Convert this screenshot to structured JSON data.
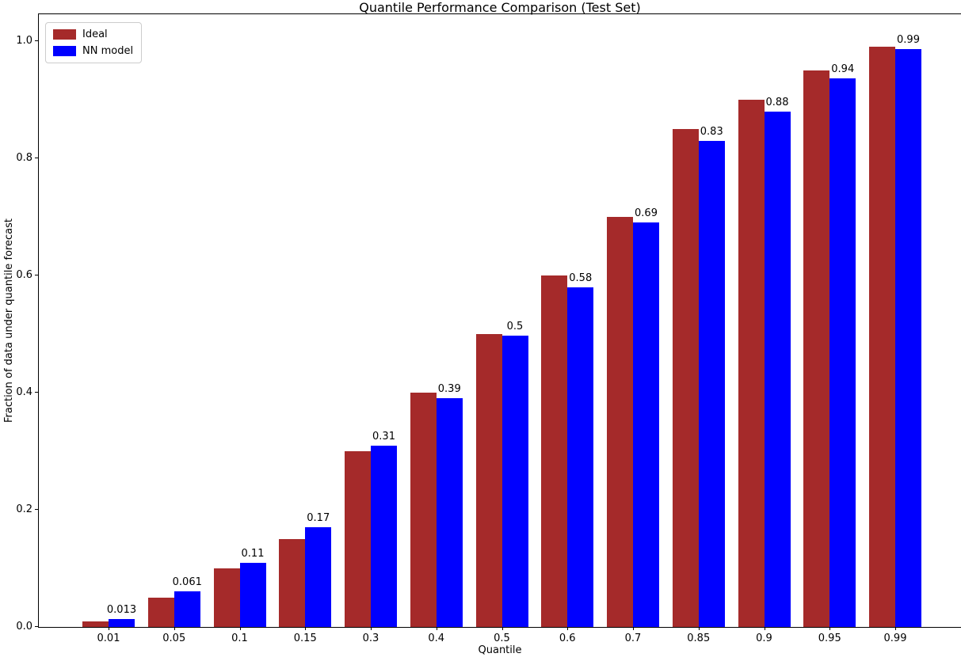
{
  "chart_data": {
    "type": "bar",
    "title": "Quantile Performance Comparison (Test Set)",
    "xlabel": "Quantile",
    "ylabel": "Fraction of data under quantile forecast",
    "categories": [
      "0.01",
      "0.05",
      "0.1",
      "0.15",
      "0.3",
      "0.4",
      "0.5",
      "0.6",
      "0.7",
      "0.85",
      "0.9",
      "0.95",
      "0.99"
    ],
    "series": [
      {
        "name": "Ideal",
        "color": "#A52A2A",
        "values": [
          0.01,
          0.05,
          0.1,
          0.15,
          0.3,
          0.4,
          0.5,
          0.6,
          0.7,
          0.85,
          0.9,
          0.95,
          0.99
        ]
      },
      {
        "name": "NN model",
        "color": "#0000FF",
        "values": [
          0.013,
          0.061,
          0.11,
          0.17,
          0.31,
          0.39,
          0.497,
          0.58,
          0.69,
          0.83,
          0.88,
          0.937,
          0.987
        ],
        "bar_labels": [
          "0.013",
          "0.061",
          "0.11",
          "0.17",
          "0.31",
          "0.39",
          "0.5",
          "0.58",
          "0.69",
          "0.83",
          "0.88",
          "0.94",
          "0.99"
        ]
      }
    ],
    "ylim": [
      0,
      1.046
    ],
    "yticks": {
      "values": [
        0,
        0.2,
        0.4,
        0.6,
        0.8,
        1.0
      ],
      "labels": [
        "0.0",
        "0.2",
        "0.4",
        "0.6",
        "0.8",
        "1.0"
      ]
    },
    "legend": {
      "position": "upper left"
    },
    "grid": false,
    "bar_labels_on_series": "NN model"
  }
}
